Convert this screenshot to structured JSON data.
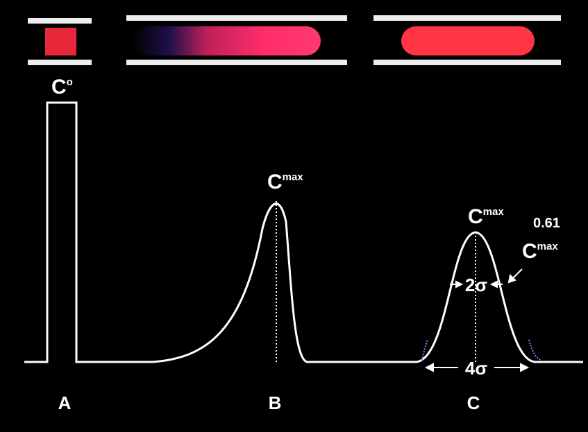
{
  "panels": [
    {
      "label": "A",
      "peak_label": {
        "base": "C",
        "sup": "o"
      }
    },
    {
      "label": "B",
      "peak_label": {
        "base": "C",
        "sup": "max"
      }
    },
    {
      "label": "C",
      "peak_label": {
        "base": "C",
        "sup": "max"
      },
      "width_labels": [
        "2σ",
        "4σ"
      ],
      "annotation": {
        "prefix": "0.61",
        "base": "C",
        "sup": "max"
      }
    }
  ]
}
